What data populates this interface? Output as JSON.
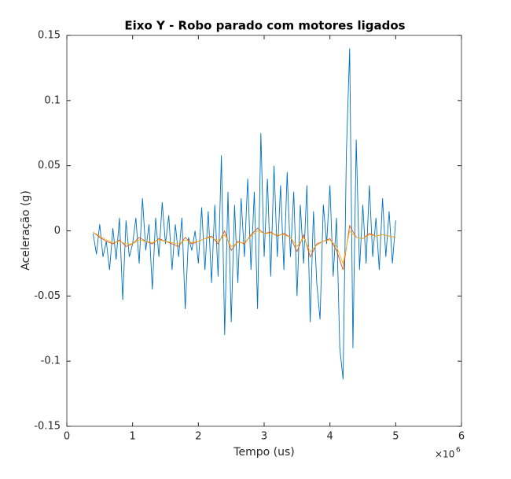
{
  "chart_data": {
    "type": "line",
    "title": "Eixo Y - Robo parado com motores ligados",
    "x_label": "Tempo (us)",
    "y_label": "Aceleração (g)",
    "x_exponent": {
      "base": "×10",
      "power": "6"
    },
    "xlim": [
      0,
      6000000
    ],
    "xticks": [
      0,
      {
        "value": 1000000,
        "label": "1"
      },
      {
        "value": 2000000,
        "label": "2"
      },
      {
        "value": 3000000,
        "label": "3"
      },
      {
        "value": 4000000,
        "label": "4"
      },
      {
        "value": 5000000,
        "label": "5"
      },
      {
        "value": 6000000,
        "label": "6"
      }
    ],
    "ylim": [
      -0.15,
      0.15
    ],
    "yticks": [
      -0.15,
      -0.1,
      -0.05,
      0,
      0.05,
      0.1,
      0.15
    ],
    "grid": false,
    "series": [
      {
        "color": "#0072BD",
        "x": [
          400000,
          450000,
          500000,
          550000,
          600000,
          650000,
          700000,
          750000,
          800000,
          850000,
          900000,
          950000,
          1000000,
          1050000,
          1100000,
          1150000,
          1200000,
          1250000,
          1300000,
          1350000,
          1400000,
          1450000,
          1500000,
          1550000,
          1600000,
          1650000,
          1700000,
          1750000,
          1800000,
          1850000,
          1900000,
          1950000,
          2000000,
          2050000,
          2100000,
          2150000,
          2200000,
          2250000,
          2300000,
          2350000,
          2400000,
          2450000,
          2500000,
          2550000,
          2600000,
          2650000,
          2700000,
          2750000,
          2800000,
          2850000,
          2900000,
          2950000,
          3000000,
          3050000,
          3100000,
          3150000,
          3200000,
          3250000,
          3300000,
          3350000,
          3400000,
          3450000,
          3500000,
          3550000,
          3600000,
          3650000,
          3700000,
          3750000,
          3800000,
          3850000,
          3900000,
          3950000,
          4000000,
          4050000,
          4100000,
          4150000,
          4200000,
          4250000,
          4300000,
          4350000,
          4400000,
          4450000,
          4500000,
          4550000,
          4600000,
          4650000,
          4700000,
          4750000,
          4800000,
          4850000,
          4900000,
          4950000,
          5000000
        ],
        "values": [
          -0.002,
          -0.018,
          0.005,
          -0.02,
          -0.008,
          -0.03,
          0.002,
          -0.022,
          0.01,
          -0.053,
          0.008,
          -0.02,
          -0.01,
          0.01,
          -0.025,
          0.025,
          -0.015,
          0.005,
          -0.045,
          0.01,
          -0.02,
          0.022,
          -0.01,
          0.012,
          -0.03,
          0.005,
          -0.02,
          0.01,
          -0.06,
          -0.005,
          -0.015,
          0.0,
          -0.025,
          0.018,
          -0.03,
          0.015,
          -0.04,
          0.02,
          -0.035,
          0.058,
          -0.08,
          0.03,
          -0.07,
          0.02,
          -0.04,
          0.025,
          -0.02,
          0.04,
          -0.03,
          0.03,
          -0.06,
          0.075,
          -0.02,
          0.04,
          -0.035,
          0.05,
          -0.02,
          0.035,
          -0.03,
          0.045,
          -0.02,
          0.03,
          -0.05,
          0.02,
          -0.025,
          0.035,
          -0.07,
          0.015,
          -0.04,
          -0.068,
          0.02,
          -0.01,
          0.035,
          -0.035,
          0.01,
          -0.09,
          -0.114,
          0.06,
          0.14,
          -0.09,
          0.07,
          -0.03,
          0.02,
          -0.025,
          0.035,
          -0.02,
          0.01,
          -0.03,
          0.025,
          -0.02,
          0.015,
          -0.025,
          0.008
        ]
      },
      {
        "color": "#D95319",
        "x": [
          400000,
          500000,
          600000,
          700000,
          800000,
          900000,
          1000000,
          1100000,
          1200000,
          1300000,
          1400000,
          1500000,
          1600000,
          1700000,
          1800000,
          1900000,
          2000000,
          2100000,
          2200000,
          2300000,
          2400000,
          2500000,
          2600000,
          2700000,
          2800000,
          2900000,
          3000000,
          3100000,
          3200000,
          3300000,
          3400000,
          3500000,
          3600000,
          3700000,
          3800000,
          3900000,
          4000000,
          4100000,
          4200000,
          4300000,
          4400000,
          4500000,
          4600000,
          4700000,
          4800000,
          4900000,
          5000000
        ],
        "values": [
          -0.001,
          -0.005,
          -0.008,
          -0.01,
          -0.007,
          -0.012,
          -0.01,
          -0.005,
          -0.008,
          -0.01,
          -0.006,
          -0.008,
          -0.01,
          -0.012,
          -0.005,
          -0.01,
          -0.008,
          -0.006,
          -0.004,
          -0.01,
          0.0,
          -0.015,
          -0.008,
          -0.01,
          -0.003,
          0.002,
          -0.002,
          -0.001,
          -0.004,
          -0.002,
          -0.005,
          -0.016,
          -0.003,
          -0.02,
          -0.01,
          -0.008,
          -0.006,
          -0.015,
          -0.03,
          0.004,
          -0.005,
          -0.006,
          -0.002,
          -0.004,
          -0.003,
          -0.004,
          -0.005
        ]
      },
      {
        "color": "#EDB120",
        "x": [
          400000,
          500000,
          600000,
          700000,
          800000,
          900000,
          1000000,
          1100000,
          1200000,
          1300000,
          1400000,
          1500000,
          1600000,
          1700000,
          1800000,
          1900000,
          2000000,
          2100000,
          2200000,
          2300000,
          2400000,
          2500000,
          2600000,
          2700000,
          2800000,
          2900000,
          3000000,
          3100000,
          3200000,
          3300000,
          3400000,
          3500000,
          3600000,
          3700000,
          3800000,
          3900000,
          4000000,
          4100000,
          4200000,
          4300000,
          4400000,
          4500000,
          4600000,
          4700000,
          4800000,
          4900000,
          5000000
        ],
        "values": [
          -0.001,
          -0.004,
          -0.007,
          -0.009,
          -0.008,
          -0.01,
          -0.01,
          -0.007,
          -0.008,
          -0.009,
          -0.007,
          -0.008,
          -0.009,
          -0.01,
          -0.007,
          -0.009,
          -0.008,
          -0.006,
          -0.005,
          -0.008,
          -0.003,
          -0.012,
          -0.009,
          -0.009,
          -0.004,
          0.0,
          -0.002,
          -0.002,
          -0.003,
          -0.003,
          -0.005,
          -0.012,
          -0.005,
          -0.016,
          -0.011,
          -0.008,
          -0.007,
          -0.012,
          -0.025,
          0.0,
          -0.005,
          -0.006,
          -0.003,
          -0.004,
          -0.003,
          -0.004,
          -0.005
        ]
      }
    ]
  }
}
